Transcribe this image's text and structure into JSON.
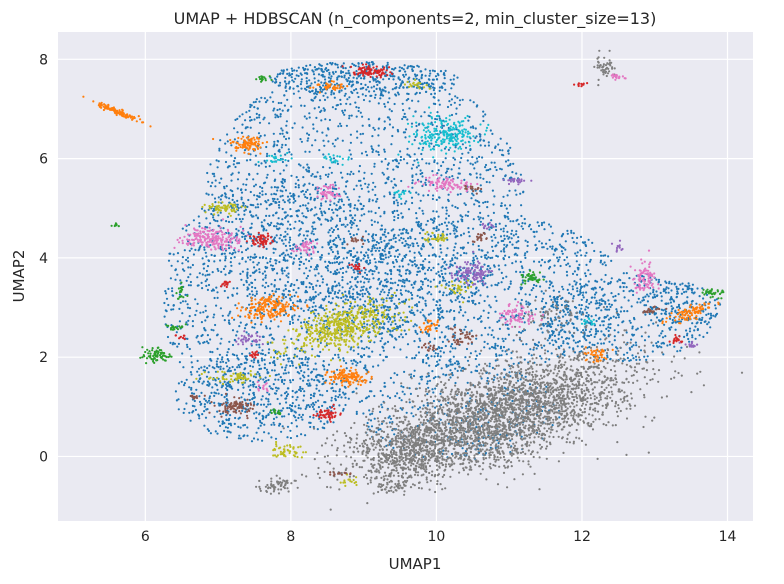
{
  "chart_data": {
    "type": "scatter",
    "title": "UMAP + HDBSCAN (n_components=2, min_cluster_size=13)",
    "xlabel": "UMAP1",
    "ylabel": "UMAP2",
    "xlim": [
      4.8,
      14.35
    ],
    "ylim": [
      -1.3,
      8.55
    ],
    "xticks": [
      6,
      8,
      10,
      12,
      14
    ],
    "yticks": [
      0,
      2,
      4,
      6,
      8
    ],
    "grid": true,
    "background": "#eaeaf2",
    "palette": {
      "noise": "#1f77b4",
      "orange": "#ff7f0e",
      "green": "#2ca02c",
      "red": "#d62728",
      "purple": "#9467bd",
      "brown": "#8c564b",
      "pink": "#e377c2",
      "gray": "#7f7f7f",
      "olive": "#bcbd22",
      "cyan": "#17becf"
    },
    "noise_regions": [
      {
        "cx": 9.0,
        "cy": 5.2,
        "rx": 2.2,
        "ry": 2.7,
        "n": 1800
      },
      {
        "cx": 7.9,
        "cy": 3.2,
        "rx": 1.7,
        "ry": 2.4,
        "n": 1200
      },
      {
        "cx": 10.6,
        "cy": 3.3,
        "rx": 2.0,
        "ry": 1.6,
        "n": 1100
      },
      {
        "cx": 12.6,
        "cy": 2.8,
        "rx": 1.2,
        "ry": 0.9,
        "n": 450
      },
      {
        "cx": 7.6,
        "cy": 1.2,
        "rx": 1.2,
        "ry": 0.9,
        "n": 450
      },
      {
        "cx": 9.0,
        "cy": 7.6,
        "rx": 1.3,
        "ry": 0.35,
        "n": 350
      },
      {
        "cx": 10.3,
        "cy": 0.9,
        "rx": 1.4,
        "ry": 1.0,
        "n": 350
      },
      {
        "cx": 13.4,
        "cy": 3.0,
        "rx": 0.5,
        "ry": 0.5,
        "n": 120
      }
    ],
    "clusters": [
      {
        "color": "gray",
        "cx": 11.0,
        "cy": 0.9,
        "rx": 1.7,
        "ry": 0.8,
        "rot": 28,
        "n": 2600
      },
      {
        "color": "gray",
        "cx": 9.6,
        "cy": 0.1,
        "rx": 0.9,
        "ry": 0.6,
        "rot": 15,
        "n": 700
      },
      {
        "color": "gray",
        "cx": 11.5,
        "cy": 2.9,
        "rx": 0.4,
        "ry": 0.3,
        "rot": 0,
        "n": 60
      },
      {
        "color": "gray",
        "cx": 12.3,
        "cy": 7.85,
        "rx": 0.12,
        "ry": 0.2,
        "rot": 0,
        "n": 50
      },
      {
        "color": "gray",
        "cx": 7.8,
        "cy": -0.6,
        "rx": 0.25,
        "ry": 0.15,
        "rot": 20,
        "n": 60
      },
      {
        "color": "gray",
        "cx": 9.4,
        "cy": -0.6,
        "rx": 0.2,
        "ry": 0.12,
        "rot": 0,
        "n": 40
      },
      {
        "color": "olive",
        "cx": 8.7,
        "cy": 2.6,
        "rx": 0.7,
        "ry": 0.35,
        "rot": 25,
        "n": 500
      },
      {
        "color": "olive",
        "cx": 7.2,
        "cy": 1.6,
        "rx": 0.3,
        "ry": 0.1,
        "rot": 0,
        "n": 60
      },
      {
        "color": "olive",
        "cx": 7.1,
        "cy": 5.0,
        "rx": 0.25,
        "ry": 0.12,
        "rot": 0,
        "n": 60
      },
      {
        "color": "olive",
        "cx": 10.0,
        "cy": 4.4,
        "rx": 0.15,
        "ry": 0.1,
        "rot": 0,
        "n": 30
      },
      {
        "color": "olive",
        "cx": 7.9,
        "cy": 0.1,
        "rx": 0.2,
        "ry": 0.15,
        "rot": 0,
        "n": 50
      },
      {
        "color": "olive",
        "cx": 8.8,
        "cy": -0.5,
        "rx": 0.1,
        "ry": 0.08,
        "rot": 0,
        "n": 15
      },
      {
        "color": "olive",
        "cx": 9.7,
        "cy": 7.5,
        "rx": 0.15,
        "ry": 0.08,
        "rot": 0,
        "n": 20
      },
      {
        "color": "olive",
        "cx": 10.3,
        "cy": 3.4,
        "rx": 0.2,
        "ry": 0.12,
        "rot": 0,
        "n": 30
      },
      {
        "color": "cyan",
        "cx": 10.1,
        "cy": 6.5,
        "rx": 0.4,
        "ry": 0.3,
        "rot": 0,
        "n": 220
      },
      {
        "color": "cyan",
        "cx": 8.6,
        "cy": 6.0,
        "rx": 0.15,
        "ry": 0.08,
        "rot": 0,
        "n": 20
      },
      {
        "color": "cyan",
        "cx": 9.5,
        "cy": 5.3,
        "rx": 0.1,
        "ry": 0.08,
        "rot": 0,
        "n": 15
      },
      {
        "color": "cyan",
        "cx": 7.8,
        "cy": 6.0,
        "rx": 0.2,
        "ry": 0.08,
        "rot": 0,
        "n": 20
      },
      {
        "color": "cyan",
        "cx": 12.1,
        "cy": 2.7,
        "rx": 0.1,
        "ry": 0.08,
        "rot": 0,
        "n": 15
      },
      {
        "color": "orange",
        "cx": 5.6,
        "cy": 6.95,
        "rx": 0.35,
        "ry": 0.05,
        "rot": -30,
        "n": 120
      },
      {
        "color": "orange",
        "cx": 7.7,
        "cy": 3.0,
        "rx": 0.35,
        "ry": 0.2,
        "rot": 10,
        "n": 180
      },
      {
        "color": "orange",
        "cx": 7.4,
        "cy": 6.3,
        "rx": 0.2,
        "ry": 0.15,
        "rot": 0,
        "n": 90
      },
      {
        "color": "orange",
        "cx": 8.8,
        "cy": 1.6,
        "rx": 0.25,
        "ry": 0.15,
        "rot": 0,
        "n": 120
      },
      {
        "color": "orange",
        "cx": 13.5,
        "cy": 2.9,
        "rx": 0.3,
        "ry": 0.1,
        "rot": 30,
        "n": 90
      },
      {
        "color": "orange",
        "cx": 12.2,
        "cy": 2.05,
        "rx": 0.15,
        "ry": 0.12,
        "rot": 0,
        "n": 40
      },
      {
        "color": "orange",
        "cx": 8.5,
        "cy": 7.45,
        "rx": 0.2,
        "ry": 0.08,
        "rot": 0,
        "n": 40
      },
      {
        "color": "orange",
        "cx": 9.9,
        "cy": 2.6,
        "rx": 0.15,
        "ry": 0.1,
        "rot": 30,
        "n": 30
      },
      {
        "color": "green",
        "cx": 6.15,
        "cy": 2.05,
        "rx": 0.2,
        "ry": 0.15,
        "rot": 0,
        "n": 70
      },
      {
        "color": "green",
        "cx": 6.4,
        "cy": 2.6,
        "rx": 0.1,
        "ry": 0.06,
        "rot": 0,
        "n": 20
      },
      {
        "color": "green",
        "cx": 11.3,
        "cy": 3.6,
        "rx": 0.12,
        "ry": 0.12,
        "rot": 0,
        "n": 40
      },
      {
        "color": "green",
        "cx": 13.8,
        "cy": 3.3,
        "rx": 0.12,
        "ry": 0.08,
        "rot": 0,
        "n": 30
      },
      {
        "color": "green",
        "cx": 6.5,
        "cy": 3.3,
        "rx": 0.08,
        "ry": 0.15,
        "rot": 0,
        "n": 20
      },
      {
        "color": "green",
        "cx": 7.6,
        "cy": 7.6,
        "rx": 0.12,
        "ry": 0.05,
        "rot": 0,
        "n": 15
      },
      {
        "color": "green",
        "cx": 5.6,
        "cy": 4.65,
        "rx": 0.08,
        "ry": 0.03,
        "rot": 0,
        "n": 8
      },
      {
        "color": "green",
        "cx": 7.8,
        "cy": 0.9,
        "rx": 0.1,
        "ry": 0.05,
        "rot": 0,
        "n": 15
      },
      {
        "color": "red",
        "cx": 9.1,
        "cy": 7.75,
        "rx": 0.25,
        "ry": 0.1,
        "rot": 0,
        "n": 90
      },
      {
        "color": "red",
        "cx": 7.6,
        "cy": 4.35,
        "rx": 0.15,
        "ry": 0.12,
        "rot": 0,
        "n": 60
      },
      {
        "color": "red",
        "cx": 8.5,
        "cy": 0.85,
        "rx": 0.15,
        "ry": 0.12,
        "rot": 0,
        "n": 50
      },
      {
        "color": "red",
        "cx": 13.3,
        "cy": 2.35,
        "rx": 0.08,
        "ry": 0.06,
        "rot": 0,
        "n": 20
      },
      {
        "color": "red",
        "cx": 7.5,
        "cy": 2.05,
        "rx": 0.08,
        "ry": 0.06,
        "rot": 0,
        "n": 15
      },
      {
        "color": "red",
        "cx": 7.1,
        "cy": 3.5,
        "rx": 0.06,
        "ry": 0.1,
        "rot": 0,
        "n": 15
      },
      {
        "color": "red",
        "cx": 12.0,
        "cy": 7.5,
        "rx": 0.1,
        "ry": 0.04,
        "rot": 0,
        "n": 12
      },
      {
        "color": "red",
        "cx": 8.9,
        "cy": 3.8,
        "rx": 0.08,
        "ry": 0.08,
        "rot": 0,
        "n": 15
      },
      {
        "color": "red",
        "cx": 6.5,
        "cy": 2.4,
        "rx": 0.06,
        "ry": 0.05,
        "rot": 0,
        "n": 10
      },
      {
        "color": "pink",
        "cx": 6.9,
        "cy": 4.4,
        "rx": 0.35,
        "ry": 0.2,
        "rot": 0,
        "n": 200
      },
      {
        "color": "pink",
        "cx": 12.85,
        "cy": 3.6,
        "rx": 0.15,
        "ry": 0.3,
        "rot": 0,
        "n": 90
      },
      {
        "color": "pink",
        "cx": 10.1,
        "cy": 5.5,
        "rx": 0.35,
        "ry": 0.12,
        "rot": -10,
        "n": 90
      },
      {
        "color": "pink",
        "cx": 11.1,
        "cy": 2.85,
        "rx": 0.25,
        "ry": 0.2,
        "rot": 0,
        "n": 80
      },
      {
        "color": "pink",
        "cx": 8.5,
        "cy": 5.3,
        "rx": 0.15,
        "ry": 0.15,
        "rot": 0,
        "n": 50
      },
      {
        "color": "pink",
        "cx": 8.2,
        "cy": 4.2,
        "rx": 0.15,
        "ry": 0.12,
        "rot": 0,
        "n": 40
      },
      {
        "color": "pink",
        "cx": 12.45,
        "cy": 7.65,
        "rx": 0.1,
        "ry": 0.05,
        "rot": 0,
        "n": 20
      },
      {
        "color": "pink",
        "cx": 7.6,
        "cy": 1.4,
        "rx": 0.1,
        "ry": 0.1,
        "rot": 0,
        "n": 15
      },
      {
        "color": "purple",
        "cx": 10.5,
        "cy": 3.7,
        "rx": 0.25,
        "ry": 0.2,
        "rot": 0,
        "n": 110
      },
      {
        "color": "purple",
        "cx": 7.45,
        "cy": 2.35,
        "rx": 0.15,
        "ry": 0.1,
        "rot": 0,
        "n": 35
      },
      {
        "color": "purple",
        "cx": 11.1,
        "cy": 5.55,
        "rx": 0.15,
        "ry": 0.05,
        "rot": 0,
        "n": 25
      },
      {
        "color": "purple",
        "cx": 13.5,
        "cy": 2.25,
        "rx": 0.1,
        "ry": 0.05,
        "rot": 0,
        "n": 15
      },
      {
        "color": "purple",
        "cx": 12.5,
        "cy": 4.25,
        "rx": 0.05,
        "ry": 0.1,
        "rot": 0,
        "n": 12
      },
      {
        "color": "purple",
        "cx": 10.7,
        "cy": 4.65,
        "rx": 0.08,
        "ry": 0.06,
        "rot": 0,
        "n": 12
      },
      {
        "color": "brown",
        "cx": 7.25,
        "cy": 1.0,
        "rx": 0.25,
        "ry": 0.15,
        "rot": 0,
        "n": 90
      },
      {
        "color": "brown",
        "cx": 10.35,
        "cy": 2.4,
        "rx": 0.15,
        "ry": 0.15,
        "rot": 0,
        "n": 40
      },
      {
        "color": "brown",
        "cx": 12.95,
        "cy": 2.95,
        "rx": 0.12,
        "ry": 0.05,
        "rot": 0,
        "n": 20
      },
      {
        "color": "brown",
        "cx": 10.6,
        "cy": 4.4,
        "rx": 0.1,
        "ry": 0.08,
        "rot": 0,
        "n": 20
      },
      {
        "color": "brown",
        "cx": 10.5,
        "cy": 5.4,
        "rx": 0.1,
        "ry": 0.06,
        "rot": 0,
        "n": 15
      },
      {
        "color": "brown",
        "cx": 8.9,
        "cy": 4.35,
        "rx": 0.1,
        "ry": 0.06,
        "rot": 0,
        "n": 15
      },
      {
        "color": "brown",
        "cx": 6.7,
        "cy": 1.2,
        "rx": 0.08,
        "ry": 0.06,
        "rot": 0,
        "n": 12
      },
      {
        "color": "brown",
        "cx": 9.9,
        "cy": 2.2,
        "rx": 0.1,
        "ry": 0.08,
        "rot": 0,
        "n": 15
      },
      {
        "color": "brown",
        "cx": 8.7,
        "cy": -0.35,
        "rx": 0.15,
        "ry": 0.04,
        "rot": 0,
        "n": 15
      }
    ]
  }
}
